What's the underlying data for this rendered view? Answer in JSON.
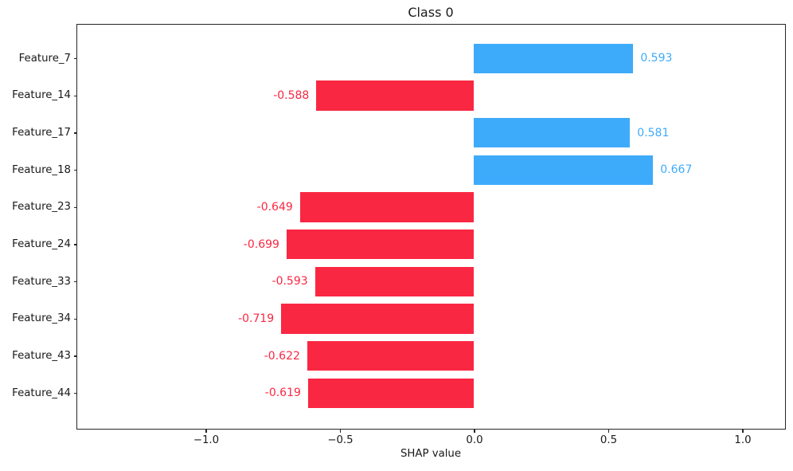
{
  "chart_data": {
    "type": "bar",
    "orientation": "horizontal",
    "title": "Class 0",
    "xlabel": "SHAP value",
    "ylabel": "",
    "categories": [
      "Feature_7",
      "Feature_14",
      "Feature_17",
      "Feature_18",
      "Feature_23",
      "Feature_24",
      "Feature_33",
      "Feature_34",
      "Feature_43",
      "Feature_44"
    ],
    "values": [
      0.593,
      -0.588,
      0.581,
      0.667,
      -0.649,
      -0.699,
      -0.593,
      -0.719,
      -0.622,
      -0.619
    ],
    "bar_labels": [
      "0.593",
      "-0.588",
      "0.581",
      "0.667",
      "-0.649",
      "-0.699",
      "-0.593",
      "-0.719",
      "-0.622",
      "-0.619"
    ],
    "xlim": [
      -1.4807,
      1.1573
    ],
    "x_ticks": [
      -1.0,
      -0.5,
      0.0,
      0.5,
      1.0
    ],
    "x_tick_labels": [
      "−1.0",
      "−0.5",
      "0.0",
      "0.5",
      "1.0"
    ],
    "grid": false,
    "legend": null,
    "colors": {
      "positive_bar": "#3eabfa",
      "negative_bar": "#fa2742",
      "spine": "#262626",
      "text": "#1a1a1a",
      "background": "#ffffff"
    }
  }
}
